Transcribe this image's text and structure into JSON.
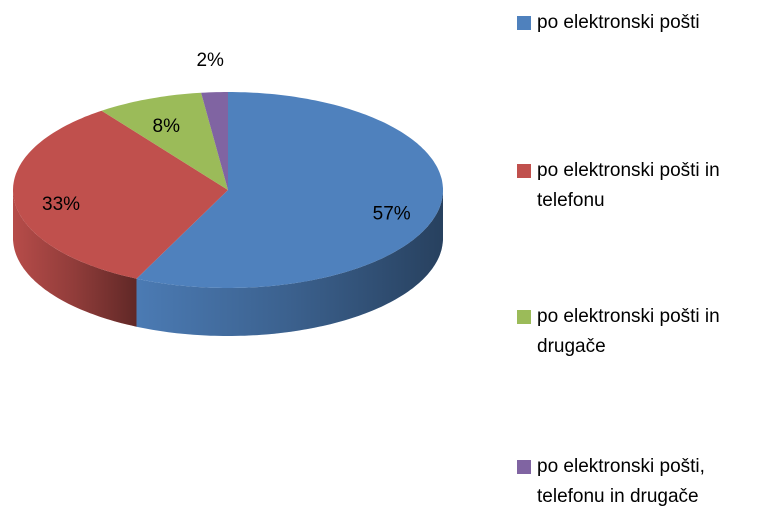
{
  "chart_data": {
    "type": "pie",
    "three_d": true,
    "categories": [
      "po elektronski pošti",
      "po elektronski pošti in telefonu",
      "po elektronski pošti in drugače",
      "po elektronski pošti, telefonu in drugače"
    ],
    "values": [
      57,
      33,
      8,
      2
    ],
    "value_labels": [
      "57%",
      "33%",
      "8%",
      "2%"
    ],
    "colors": [
      "#4f81bd",
      "#c0504d",
      "#9bbb59",
      "#8064a2"
    ],
    "legend": "right"
  }
}
